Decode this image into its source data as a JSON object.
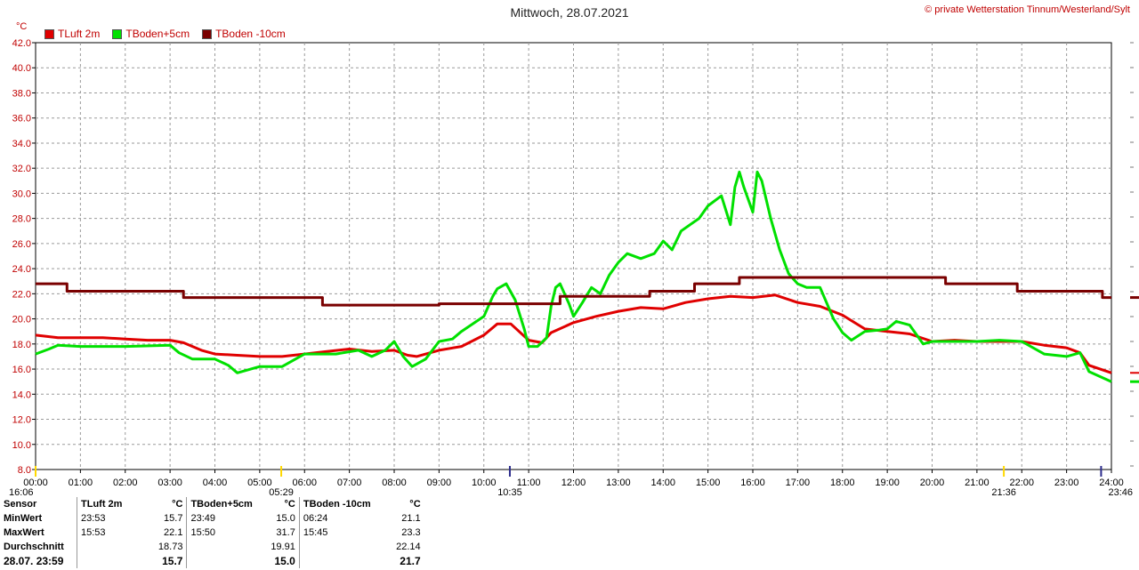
{
  "title": "Mittwoch, 28.07.2021",
  "copyright": "© private Wetterstation Tinnum/Westerland/Sylt",
  "chart_data": {
    "type": "line",
    "y_unit": "°C",
    "ylim": [
      8.0,
      42.0
    ],
    "yticks": [
      "8.0",
      "10.0",
      "12.0",
      "14.0",
      "16.0",
      "18.0",
      "20.0",
      "22.0",
      "24.0",
      "26.0",
      "28.0",
      "30.0",
      "32.0",
      "34.0",
      "36.0",
      "38.0",
      "40.0",
      "42.0"
    ],
    "xlim": [
      0,
      24
    ],
    "xticks": [
      "00:00",
      "01:00",
      "02:00",
      "03:00",
      "04:00",
      "05:00",
      "06:00",
      "07:00",
      "08:00",
      "09:00",
      "10:00",
      "11:00",
      "12:00",
      "13:00",
      "14:00",
      "15:00",
      "16:00",
      "17:00",
      "18:00",
      "19:00",
      "20:00",
      "21:00",
      "22:00",
      "23:00",
      "24:00"
    ],
    "grid": true,
    "legend_position": "top-left",
    "time_markers": [
      {
        "label": "16:06",
        "hour": 0.0
      },
      {
        "label": "05:29",
        "hour": 5.48
      },
      {
        "label": "10:35",
        "hour": 10.58
      },
      {
        "label": "21:36",
        "hour": 21.6
      },
      {
        "label": "23:46",
        "hour": 23.77
      }
    ],
    "series": [
      {
        "name": "TLuft 2m",
        "color": "#e00000",
        "x": [
          0,
          0.5,
          1,
          1.5,
          2,
          2.5,
          3,
          3.3,
          3.7,
          4,
          4.5,
          5,
          5.5,
          6,
          6.5,
          7,
          7.5,
          8,
          8.3,
          8.5,
          9,
          9.5,
          10,
          10.3,
          10.6,
          11,
          11.3,
          11.5,
          12,
          12.5,
          13,
          13.5,
          14,
          14.5,
          15,
          15.5,
          16,
          16.5,
          17,
          17.5,
          18,
          18.5,
          19,
          19.5,
          20,
          20.5,
          21,
          21.5,
          22,
          22.5,
          23,
          23.3,
          23.5,
          24
        ],
        "y": [
          18.7,
          18.5,
          18.5,
          18.5,
          18.4,
          18.3,
          18.3,
          18.1,
          17.5,
          17.2,
          17.1,
          17.0,
          17.0,
          17.2,
          17.4,
          17.6,
          17.4,
          17.5,
          17.1,
          17.0,
          17.5,
          17.8,
          18.7,
          19.6,
          19.6,
          18.3,
          18.1,
          18.9,
          19.7,
          20.2,
          20.6,
          20.9,
          20.8,
          21.3,
          21.6,
          21.8,
          21.7,
          21.9,
          21.3,
          21.0,
          20.3,
          19.2,
          19.0,
          18.8,
          18.2,
          18.3,
          18.2,
          18.2,
          18.2,
          17.9,
          17.7,
          17.3,
          16.3,
          15.7
        ]
      },
      {
        "name": "TBoden+5cm",
        "color": "#00e000",
        "x": [
          0,
          0.3,
          0.5,
          1,
          2,
          3,
          3.2,
          3.5,
          4,
          4.3,
          4.5,
          5,
          5.5,
          6,
          6.7,
          7.2,
          7.5,
          7.8,
          8,
          8.2,
          8.4,
          8.7,
          9,
          9.3,
          9.5,
          10,
          10.2,
          10.3,
          10.5,
          10.7,
          10.9,
          11,
          11.2,
          11.4,
          11.5,
          11.6,
          11.7,
          11.8,
          11.9,
          12,
          12.2,
          12.4,
          12.6,
          12.8,
          13,
          13.2,
          13.5,
          13.8,
          14,
          14.2,
          14.4,
          14.6,
          14.8,
          15,
          15.3,
          15.5,
          15.6,
          15.7,
          15.8,
          16,
          16.1,
          16.2,
          16.4,
          16.6,
          16.8,
          17,
          17.2,
          17.5,
          17.8,
          18,
          18.2,
          18.5,
          18.8,
          19,
          19.2,
          19.5,
          19.8,
          20,
          20.5,
          21,
          21.5,
          22,
          22.5,
          23,
          23.3,
          23.5,
          24
        ],
        "y": [
          17.2,
          17.6,
          17.9,
          17.8,
          17.8,
          17.9,
          17.3,
          16.8,
          16.8,
          16.3,
          15.7,
          16.2,
          16.2,
          17.2,
          17.2,
          17.5,
          17.0,
          17.5,
          18.2,
          17.0,
          16.2,
          16.8,
          18.2,
          18.4,
          19.0,
          20.2,
          21.8,
          22.4,
          22.8,
          21.5,
          19.2,
          17.8,
          17.8,
          18.5,
          21.0,
          22.5,
          22.8,
          22.0,
          21.2,
          20.2,
          21.3,
          22.5,
          22.0,
          23.5,
          24.5,
          25.2,
          24.8,
          25.2,
          26.2,
          25.5,
          27.0,
          27.5,
          28.0,
          29.0,
          29.8,
          27.5,
          30.5,
          31.7,
          30.5,
          28.5,
          31.7,
          31.0,
          28.0,
          25.5,
          23.6,
          22.8,
          22.5,
          22.5,
          20.0,
          18.9,
          18.3,
          19.0,
          19.1,
          19.2,
          19.8,
          19.5,
          18.0,
          18.2,
          18.2,
          18.2,
          18.3,
          18.2,
          17.2,
          17.0,
          17.3,
          15.8,
          15.0
        ]
      },
      {
        "name": "TBoden -10cm",
        "color": "#7a0000",
        "x": [
          0,
          0.7,
          0.7,
          3.3,
          3.3,
          6.4,
          6.4,
          9.0,
          9.0,
          11.7,
          11.7,
          13.7,
          13.7,
          14.7,
          14.7,
          15.7,
          15.7,
          20.3,
          20.3,
          21.9,
          21.9,
          23.8,
          23.8,
          24
        ],
        "y": [
          22.8,
          22.8,
          22.2,
          22.2,
          21.7,
          21.7,
          21.1,
          21.1,
          21.2,
          21.2,
          21.8,
          21.8,
          22.2,
          22.2,
          22.8,
          22.8,
          23.3,
          23.3,
          22.8,
          22.8,
          22.2,
          22.2,
          21.7,
          21.7
        ]
      }
    ]
  },
  "legend": {
    "items": [
      {
        "label": "TLuft 2m",
        "color": "#e00000"
      },
      {
        "label": "TBoden+5cm",
        "color": "#00e000"
      },
      {
        "label": "TBoden -10cm",
        "color": "#7a0000"
      }
    ]
  },
  "stats": {
    "head": {
      "sensor": "Sensor",
      "c1": "TLuft 2m",
      "u1": "°C",
      "c2": "TBoden+5cm",
      "u2": "°C",
      "c3": "TBoden -10cm",
      "u3": "°C"
    },
    "min": {
      "label": "MinWert",
      "t1": "23:53",
      "v1": "15.7",
      "t2": "23:49",
      "v2": "15.0",
      "t3": "06:24",
      "v3": "21.1"
    },
    "max": {
      "label": "MaxWert",
      "t1": "15:53",
      "v1": "22.1",
      "t2": "15:50",
      "v2": "31.7",
      "t3": "15:45",
      "v3": "23.3"
    },
    "avg": {
      "label": "Durchschnitt",
      "v1": "18.73",
      "v2": "19.91",
      "v3": "22.14"
    },
    "last": {
      "label": "28.07. 23:59",
      "v1": "15.7",
      "v2": "15.0",
      "v3": "21.7"
    }
  }
}
